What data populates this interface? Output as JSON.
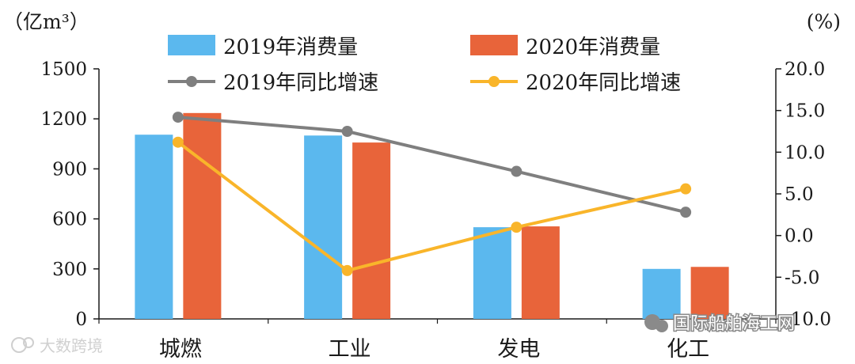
{
  "chart_data": {
    "type": "bar",
    "categories": [
      "城燃",
      "工业",
      "发电",
      "化工"
    ],
    "series": [
      {
        "name": "2019年消费量",
        "kind": "bar",
        "axis": "left",
        "color": "#5bb8ee",
        "values": [
          1105,
          1100,
          550,
          300
        ]
      },
      {
        "name": "2020年消费量",
        "kind": "bar",
        "axis": "left",
        "color": "#e8643a",
        "values": [
          1235,
          1058,
          555,
          312
        ]
      },
      {
        "name": "2019年同比增速",
        "kind": "line",
        "axis": "right",
        "color": "#7f7f7f",
        "values": [
          14.2,
          12.5,
          7.7,
          2.8
        ]
      },
      {
        "name": "2020年同比增速",
        "kind": "line",
        "axis": "right",
        "color": "#f9b52a",
        "values": [
          11.2,
          -4.2,
          1.0,
          5.6
        ]
      }
    ],
    "y_left": {
      "unit": "（亿m³）",
      "min": 0,
      "max": 1500,
      "ticks": [
        "0",
        "300",
        "600",
        "900",
        "1200",
        "1500"
      ]
    },
    "y_right": {
      "unit": "(%)",
      "min": -10,
      "max": 20,
      "ticks": [
        "-10.0",
        "-5.0",
        "0.0",
        "5.0",
        "10.0",
        "15.0",
        "20.0"
      ]
    },
    "grid": false,
    "legend_position": "top"
  },
  "watermarks": {
    "left": "大数跨境",
    "right": "国际船舶海工网"
  }
}
